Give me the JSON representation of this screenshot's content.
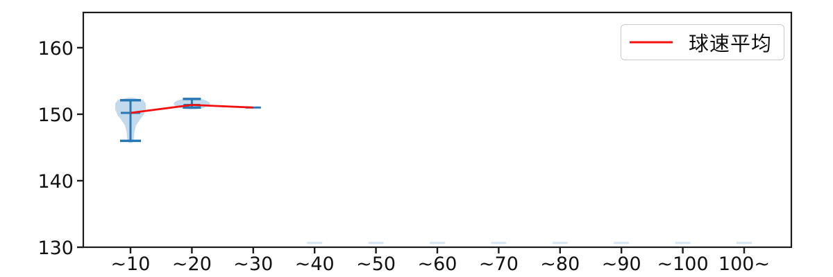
{
  "chart_data": {
    "type": "violin",
    "title": "",
    "xlabel": "",
    "ylabel": "",
    "categories": [
      "~10",
      "~20",
      "~30",
      "~40",
      "~50",
      "~60",
      "~70",
      "~80",
      "~90",
      "~100",
      "100~"
    ],
    "ylim": [
      130,
      165.3
    ],
    "yticks": [
      130,
      140,
      150,
      160
    ],
    "grid": false,
    "legend": {
      "position": "upper right",
      "entries": [
        {
          "label": "球速平均",
          "color": "#f40f0f",
          "marker": "line"
        }
      ]
    },
    "violins": [
      {
        "category": "~10",
        "min": 146.0,
        "max": 152.1,
        "mean": 150.2,
        "shape": "funnel",
        "faint": false
      },
      {
        "category": "~20",
        "min": 151.0,
        "max": 152.3,
        "mean": 151.4,
        "shape": "blob",
        "faint": false
      },
      {
        "category": "~30",
        "min": 151.0,
        "max": 151.0,
        "mean": 151.0,
        "shape": "flat",
        "faint": false
      },
      {
        "category": "~40",
        "min": 130.6,
        "max": 130.6,
        "mean": 130.6,
        "shape": "flat",
        "faint": true
      },
      {
        "category": "~50",
        "min": 130.6,
        "max": 130.6,
        "mean": 130.6,
        "shape": "flat",
        "faint": true
      },
      {
        "category": "~60",
        "min": 130.6,
        "max": 130.6,
        "mean": 130.6,
        "shape": "flat",
        "faint": true
      },
      {
        "category": "~70",
        "min": 130.6,
        "max": 130.6,
        "mean": 130.6,
        "shape": "flat",
        "faint": true
      },
      {
        "category": "~80",
        "min": 130.6,
        "max": 130.6,
        "mean": 130.6,
        "shape": "flat",
        "faint": true
      },
      {
        "category": "~90",
        "min": 130.6,
        "max": 130.6,
        "mean": 130.6,
        "shape": "flat",
        "faint": true
      },
      {
        "category": "~100",
        "min": 130.6,
        "max": 130.6,
        "mean": 130.6,
        "shape": "flat",
        "faint": true
      },
      {
        "category": "100~",
        "min": 130.6,
        "max": 130.6,
        "mean": 130.6,
        "shape": "flat",
        "faint": true
      }
    ],
    "series": [
      {
        "name": "球速平均",
        "color": "#f40f0f",
        "x": [
          "~10",
          "~20",
          "~30"
        ],
        "values": [
          150.2,
          151.4,
          151.0
        ]
      }
    ],
    "colors": {
      "violin_fill": "#c3d9ec",
      "violin_faint_fill": "#d8e6f3",
      "violin_line": "#2878b5",
      "mean_line": "#f40f0f",
      "axis": "#1a1a1a"
    }
  }
}
